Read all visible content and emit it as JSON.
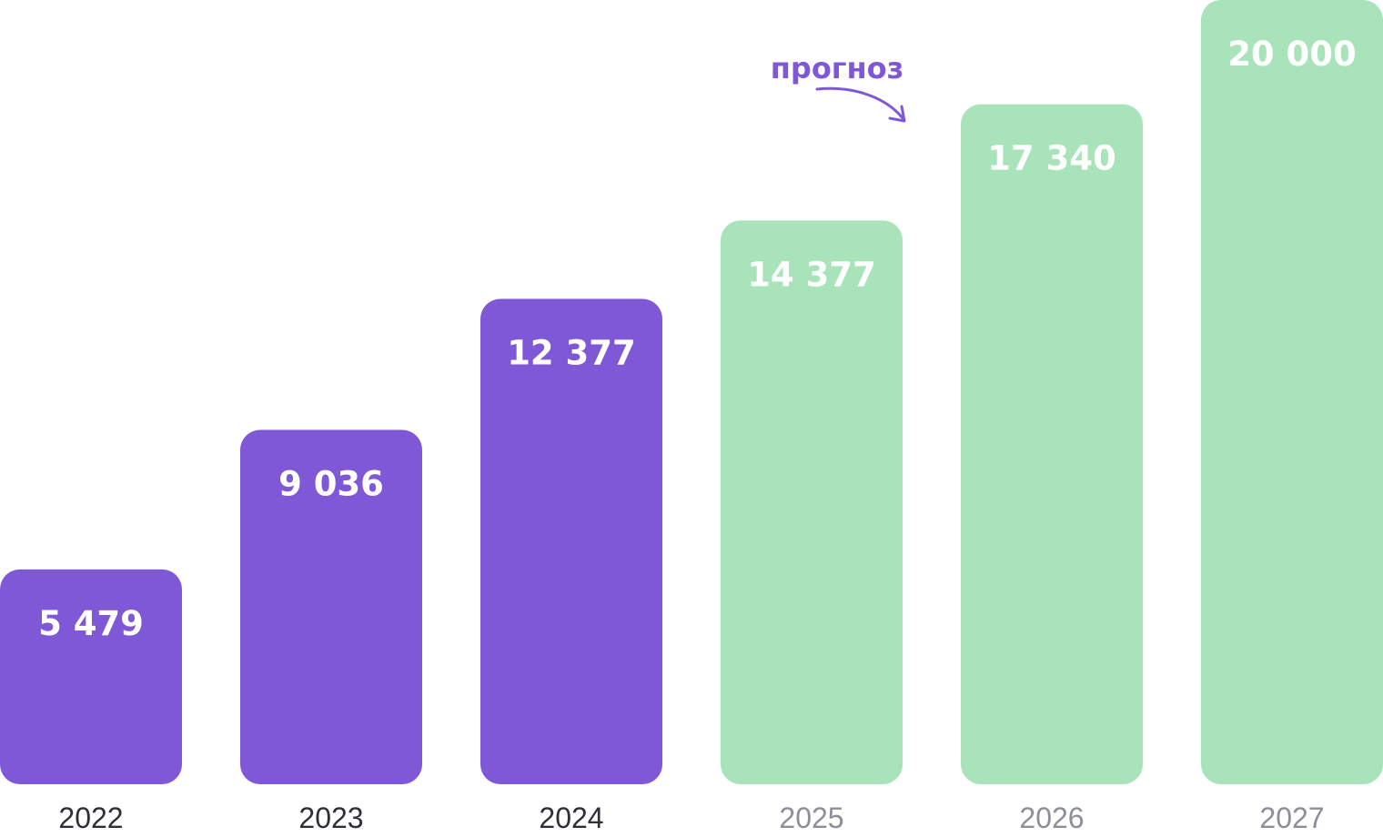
{
  "chart_data": {
    "type": "bar",
    "categories": [
      "2022",
      "2023",
      "2024",
      "2025",
      "2026",
      "2027"
    ],
    "series": [
      {
        "values": [
          5479,
          9036,
          12377,
          14377,
          17340,
          20000
        ]
      }
    ],
    "value_labels": [
      "5 479",
      "9 036",
      "12 377",
      "14 377",
      "17 340",
      "20 000"
    ],
    "forecast_from_index": 3,
    "title": "",
    "xlabel": "",
    "ylabel": "",
    "annotation": "прогноз",
    "grid": false,
    "legend": "none",
    "colors": {
      "actual_bar": "#7f58d8",
      "forecast_bar": "#a8e3b9",
      "actual_year_text": "#2f2f36",
      "forecast_year_text": "#8d8f98",
      "annotation": "#7f58d8"
    }
  }
}
